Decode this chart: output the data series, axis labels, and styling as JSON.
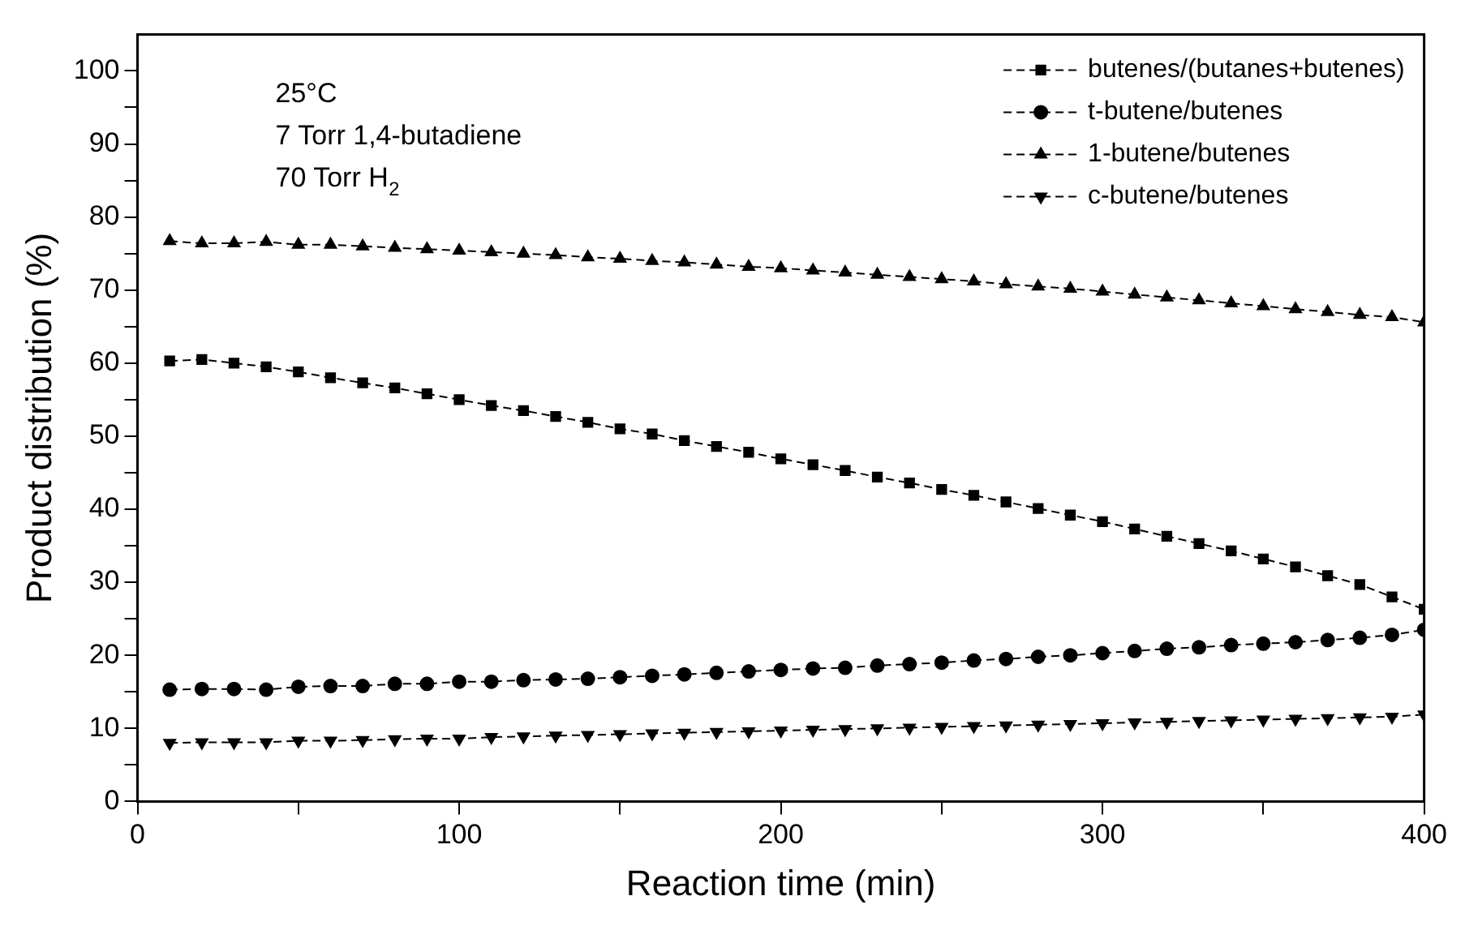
{
  "chart_data": {
    "type": "line",
    "xlabel": "Reaction time (min)",
    "ylabel": "Product distribution (%)",
    "x": [
      10,
      20,
      30,
      40,
      50,
      60,
      70,
      80,
      90,
      100,
      110,
      120,
      130,
      140,
      150,
      160,
      170,
      180,
      190,
      200,
      210,
      220,
      230,
      240,
      250,
      260,
      270,
      280,
      290,
      300,
      310,
      320,
      330,
      340,
      350,
      360,
      370,
      380,
      390,
      400
    ],
    "series": [
      {
        "name": "butenes/(butanes+butenes)",
        "color": "#000000",
        "marker": "square",
        "values": [
          60.3,
          60.5,
          60.0,
          59.5,
          58.8,
          58.0,
          57.3,
          56.6,
          55.8,
          55.0,
          54.2,
          53.5,
          52.7,
          51.9,
          51.0,
          50.3,
          49.4,
          48.6,
          47.8,
          46.9,
          46.1,
          45.3,
          44.4,
          43.6,
          42.7,
          41.9,
          41.0,
          40.1,
          39.2,
          38.3,
          37.3,
          36.3,
          35.3,
          34.3,
          33.2,
          32.1,
          30.9,
          29.7,
          28.0,
          26.3
        ]
      },
      {
        "name": "t-butene/butenes",
        "color": "#000000",
        "marker": "circle",
        "values": [
          15.3,
          15.4,
          15.4,
          15.3,
          15.7,
          15.8,
          15.8,
          16.1,
          16.1,
          16.4,
          16.4,
          16.6,
          16.7,
          16.8,
          17.0,
          17.2,
          17.4,
          17.6,
          17.8,
          18.0,
          18.2,
          18.3,
          18.6,
          18.8,
          19.0,
          19.3,
          19.5,
          19.8,
          20.0,
          20.3,
          20.6,
          20.9,
          21.1,
          21.4,
          21.6,
          21.8,
          22.1,
          22.4,
          22.8,
          23.5
        ]
      },
      {
        "name": "1-butene/butenes",
        "color": "#000000",
        "marker": "triangle",
        "values": [
          76.7,
          76.4,
          76.4,
          76.6,
          76.2,
          76.2,
          76.0,
          75.8,
          75.6,
          75.4,
          75.2,
          75.0,
          74.8,
          74.5,
          74.3,
          74.0,
          73.8,
          73.5,
          73.2,
          73.0,
          72.7,
          72.4,
          72.1,
          71.8,
          71.5,
          71.2,
          70.8,
          70.5,
          70.2,
          69.8,
          69.4,
          69.0,
          68.6,
          68.2,
          67.8,
          67.4,
          67.0,
          66.6,
          66.3,
          65.6
        ]
      },
      {
        "name": "c-butene/butenes",
        "color": "#000000",
        "marker": "triangle-down",
        "values": [
          8.0,
          8.1,
          8.1,
          8.1,
          8.3,
          8.3,
          8.4,
          8.5,
          8.6,
          8.6,
          8.8,
          8.9,
          9.0,
          9.1,
          9.2,
          9.3,
          9.4,
          9.5,
          9.6,
          9.7,
          9.8,
          9.9,
          10.0,
          10.1,
          10.2,
          10.3,
          10.4,
          10.5,
          10.6,
          10.7,
          10.8,
          10.9,
          11.0,
          11.1,
          11.2,
          11.3,
          11.4,
          11.5,
          11.6,
          11.9
        ]
      }
    ],
    "xlim": [
      0,
      400
    ],
    "xticks": [
      0,
      {
        "value": 50,
        "label": null
      },
      100,
      {
        "value": 150,
        "label": null
      },
      200,
      {
        "value": 250,
        "label": null
      },
      300,
      {
        "value": 350,
        "label": null
      },
      400
    ],
    "ylim": [
      0,
      105
    ],
    "yticks": [
      0,
      {
        "value": 5,
        "label": null
      },
      10,
      {
        "value": 15,
        "label": null
      },
      20,
      {
        "value": 25,
        "label": null
      },
      30,
      {
        "value": 35,
        "label": null
      },
      40,
      {
        "value": 45,
        "label": null
      },
      50,
      {
        "value": 55,
        "label": null
      },
      60,
      {
        "value": 65,
        "label": null
      },
      70,
      {
        "value": 75,
        "label": null
      },
      80,
      {
        "value": 85,
        "label": null
      },
      90,
      {
        "value": 95,
        "label": null
      },
      100
    ],
    "annotations": [
      "25°C",
      "7 Torr 1,4-butadiene",
      "70 Torr H$_{2}$"
    ],
    "grid": false,
    "legend": "top right",
    "line_style": "dashed"
  }
}
